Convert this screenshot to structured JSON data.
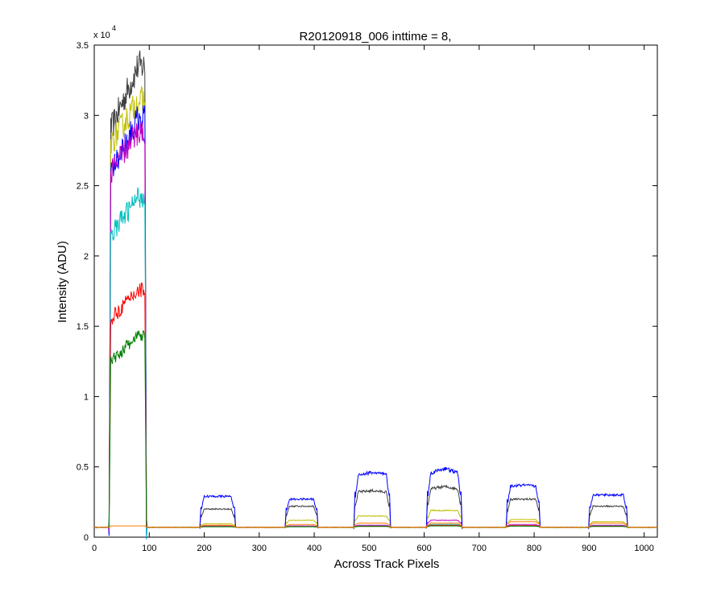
{
  "chart_data": {
    "type": "line",
    "title": "R20120918_006 inttime = 8,",
    "xlabel": "Across Track Pixels",
    "ylabel": "Intensity (ADU)",
    "y_multiplier_label": "x 10",
    "y_multiplier_exponent": "4",
    "xlim": [
      0,
      1024
    ],
    "ylim": [
      0,
      35000
    ],
    "xticks": [
      0,
      100,
      200,
      300,
      400,
      500,
      600,
      700,
      800,
      900,
      1000
    ],
    "xtick_labels": [
      "0",
      "100",
      "200",
      "300",
      "400",
      "500",
      "600",
      "700",
      "800",
      "900",
      "1000"
    ],
    "yticks": [
      0,
      5000,
      10000,
      15000,
      20000,
      25000,
      30000,
      35000
    ],
    "ytick_labels": [
      "0",
      "0.5",
      "1",
      "1.5",
      "2",
      "2.5",
      "3",
      "3.5"
    ],
    "grid": false,
    "legend": "none",
    "baseline": 700,
    "segments": [
      [
        30,
        92
      ],
      [
        195,
        254
      ],
      [
        350,
        404
      ],
      [
        475,
        536
      ],
      [
        607,
        666
      ],
      [
        752,
        808
      ],
      [
        902,
        967
      ]
    ],
    "series": [
      {
        "color": "#404040",
        "levels": [
          [
            29000,
            33500
          ],
          [
            2000,
            2000
          ],
          [
            2200,
            2200
          ],
          [
            3200,
            3300
          ],
          [
            3400,
            3600
          ],
          [
            2700,
            2700
          ],
          [
            2200,
            2200
          ]
        ]
      },
      {
        "color": "#bfbf00",
        "levels": [
          [
            28000,
            31000
          ],
          [
            950,
            950
          ],
          [
            1200,
            1200
          ],
          [
            1500,
            1500
          ],
          [
            1900,
            1900
          ],
          [
            1250,
            1250
          ],
          [
            1100,
            1100
          ]
        ]
      },
      {
        "color": "#0000ff",
        "levels": [
          [
            26000,
            29800
          ],
          [
            2900,
            2900
          ],
          [
            2700,
            2700
          ],
          [
            4400,
            4600
          ],
          [
            4500,
            4900
          ],
          [
            3600,
            3700
          ],
          [
            3000,
            3000
          ]
        ]
      },
      {
        "color": "#bf00bf",
        "levels": [
          [
            26000,
            28800
          ],
          [
            800,
            800
          ],
          [
            800,
            800
          ],
          [
            850,
            850
          ],
          [
            1200,
            1200
          ],
          [
            900,
            900
          ],
          [
            850,
            850
          ]
        ]
      },
      {
        "color": "#00bfbf",
        "levels": [
          [
            21500,
            24200
          ],
          [
            760,
            760
          ],
          [
            760,
            760
          ],
          [
            800,
            800
          ],
          [
            900,
            900
          ],
          [
            820,
            820
          ],
          [
            800,
            800
          ]
        ]
      },
      {
        "color": "#ff0000",
        "levels": [
          [
            15500,
            17600
          ],
          [
            750,
            750
          ],
          [
            750,
            750
          ],
          [
            780,
            780
          ],
          [
            850,
            850
          ],
          [
            820,
            820
          ],
          [
            780,
            780
          ]
        ]
      },
      {
        "color": "#008000",
        "levels": [
          [
            12500,
            14300
          ],
          [
            740,
            740
          ],
          [
            740,
            740
          ],
          [
            760,
            760
          ],
          [
            800,
            800
          ],
          [
            780,
            780
          ],
          [
            760,
            760
          ]
        ]
      },
      {
        "color": "#ff8000",
        "levels": [
          [
            800,
            800
          ],
          [
            850,
            850
          ],
          [
            900,
            900
          ],
          [
            1000,
            1000
          ],
          [
            1000,
            1000
          ],
          [
            1100,
            1100
          ],
          [
            1000,
            1000
          ]
        ]
      }
    ]
  }
}
